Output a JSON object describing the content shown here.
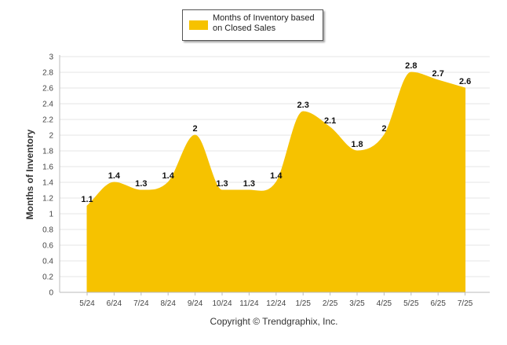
{
  "chart_data": {
    "type": "area",
    "categories": [
      "5/24",
      "6/24",
      "7/24",
      "8/24",
      "9/24",
      "10/24",
      "11/24",
      "12/24",
      "1/25",
      "2/25",
      "3/25",
      "4/25",
      "5/25",
      "6/25",
      "7/25"
    ],
    "series": [
      {
        "name": "Months of Inventory based on Closed Sales",
        "values": [
          1.1,
          1.4,
          1.3,
          1.4,
          2,
          1.3,
          1.3,
          1.4,
          2.3,
          2.1,
          1.8,
          2,
          2.8,
          2.7,
          2.6
        ],
        "color": "#F6C200"
      }
    ],
    "data_labels": [
      "1.1",
      "1.4",
      "1.3",
      "1.4",
      "2",
      "1.3",
      "1.3",
      "1.4",
      "2.3",
      "2.1",
      "1.8",
      "2",
      "2.8",
      "2.7",
      "2.6"
    ],
    "ylabel": "Months of Inventory",
    "xlabel": "",
    "ylim": [
      0,
      3
    ],
    "yticks": [
      "0",
      "0.2",
      "0.4",
      "0.6",
      "0.8",
      "1",
      "1.2",
      "1.4",
      "1.6",
      "1.8",
      "2",
      "2.2",
      "2.4",
      "2.6",
      "2.8",
      "3"
    ],
    "grid": true,
    "legend_position": "top-center",
    "smooth": true
  },
  "legend": {
    "label": "Months of Inventory based on Closed Sales"
  },
  "footer": {
    "copyright": "Copyright © Trendgraphix, Inc."
  },
  "colors": {
    "area": "#F6C200",
    "grid": "#E6E6E6",
    "axis": "#BBBBBB"
  }
}
